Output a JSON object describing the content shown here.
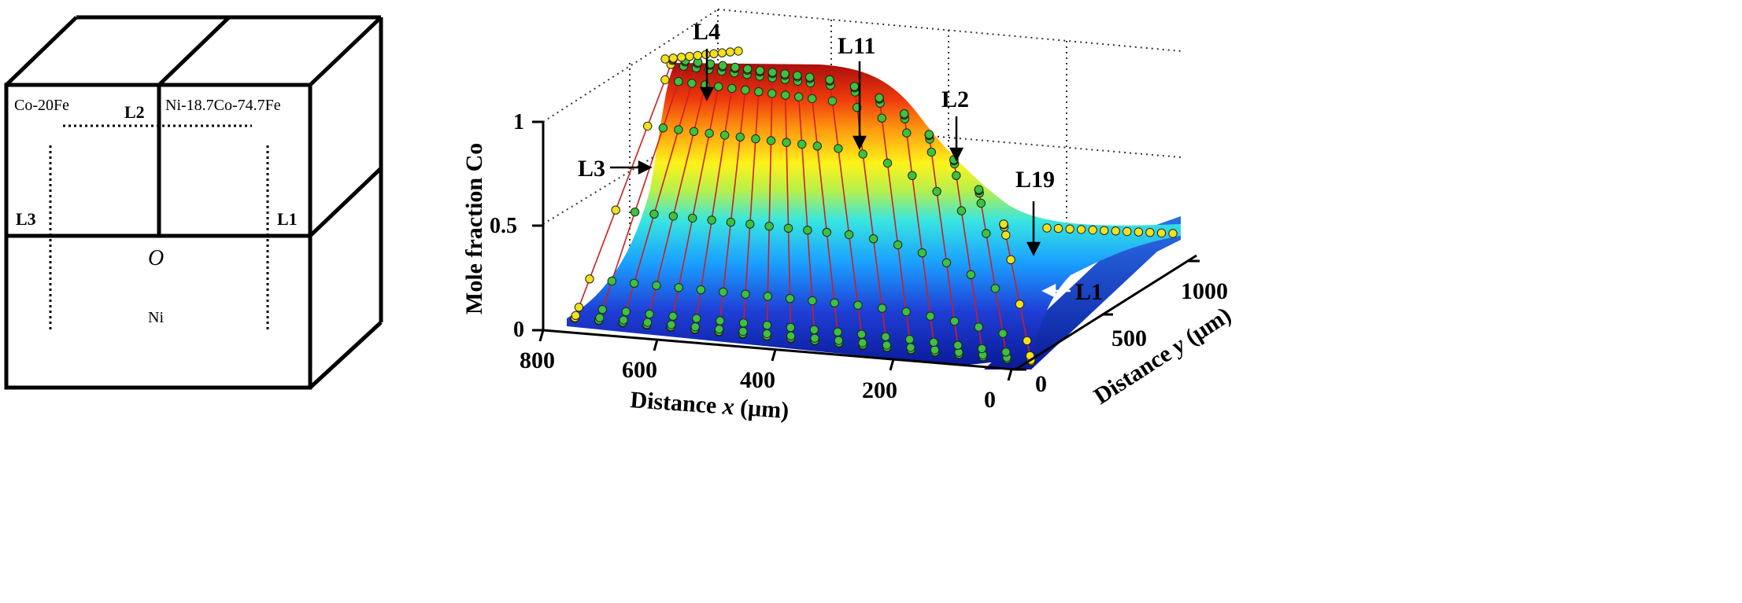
{
  "diagram": {
    "regions": {
      "top_left": "Co-20Fe",
      "top_right": "Ni-18.7Co-74.7Fe",
      "bottom": "Ni"
    },
    "origin_label": "O",
    "lines": [
      {
        "id": "L2",
        "label": "L2"
      },
      {
        "id": "L3",
        "label": "L3"
      },
      {
        "id": "L1",
        "label": "L1"
      }
    ]
  },
  "chart_data": {
    "type": "surface",
    "z_axis": {
      "label": "Mole fraction Co",
      "ticks": [
        "0",
        "0.5",
        "1"
      ],
      "range": [
        0,
        1
      ]
    },
    "x_axis": {
      "label_prefix": "Distance ",
      "label_var": "x",
      "label_unit": " (μm)",
      "ticks": [
        "800",
        "600",
        "400",
        "200",
        "0"
      ],
      "range": [
        800,
        0
      ]
    },
    "y_axis": {
      "label_prefix": "Distance ",
      "label_var": "y",
      "label_unit": " (μm)",
      "ticks": [
        "0",
        "500",
        "1000"
      ],
      "range": [
        0,
        1000
      ]
    },
    "colormap": "jet",
    "series_style": {
      "measured_outer": "#f2e21a",
      "measured_inner": "#3cc23c",
      "fit_line": "#cc1f1f"
    },
    "annotations": [
      {
        "label": "L4",
        "line_index": 0
      },
      {
        "label": "L11",
        "line_index": 7
      },
      {
        "label": "L2",
        "line_index": 13
      },
      {
        "label": "L3",
        "line_index": 0
      },
      {
        "label": "L19",
        "line_index": 19
      },
      {
        "label": "L1",
        "line_index": 19
      }
    ],
    "profile_plateau_co": 1.0,
    "profile_base_co": 0.0,
    "line_count": 20
  }
}
